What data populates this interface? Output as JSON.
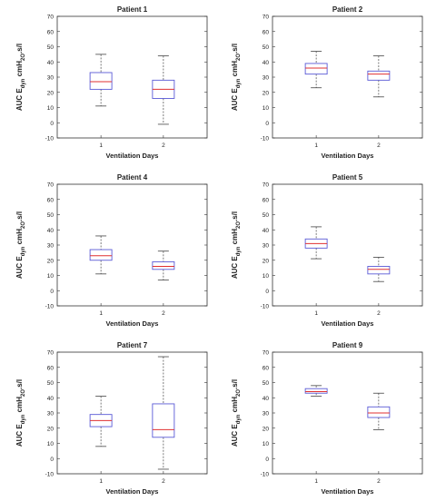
{
  "chart_data": [
    {
      "type": "box",
      "title": "Patient 1",
      "xlabel": "Ventilation Days",
      "ylabel": "AUC E_dyn cmH_2O.s/l",
      "ylim": [
        -10,
        70
      ],
      "yticks": [
        -10,
        0,
        10,
        20,
        30,
        40,
        50,
        60,
        70
      ],
      "categories": [
        "1",
        "2"
      ],
      "boxes": [
        {
          "min": 11,
          "q1": 22,
          "median": 27,
          "q3": 33,
          "max": 45
        },
        {
          "min": -1,
          "q1": 16,
          "median": 22,
          "q3": 28,
          "max": 44
        }
      ]
    },
    {
      "type": "box",
      "title": "Patient 2",
      "xlabel": "Ventilation Days",
      "ylabel": "AUC E_dyn cmH_2O.s/l",
      "ylim": [
        -10,
        70
      ],
      "yticks": [
        -10,
        0,
        10,
        20,
        30,
        40,
        50,
        60,
        70
      ],
      "categories": [
        "1",
        "2"
      ],
      "boxes": [
        {
          "min": 23,
          "q1": 32,
          "median": 36,
          "q3": 39,
          "max": 47
        },
        {
          "min": 17,
          "q1": 28,
          "median": 32,
          "q3": 34,
          "max": 44
        }
      ]
    },
    {
      "type": "box",
      "title": "Patient 4",
      "xlabel": "Ventilation Days",
      "ylabel": "AUC E_dyn cmH_2O.s/l",
      "ylim": [
        -10,
        70
      ],
      "yticks": [
        -10,
        0,
        10,
        20,
        30,
        40,
        50,
        60,
        70
      ],
      "categories": [
        "1",
        "2"
      ],
      "boxes": [
        {
          "min": 11,
          "q1": 20,
          "median": 23,
          "q3": 27,
          "max": 36
        },
        {
          "min": 7,
          "q1": 14,
          "median": 16,
          "q3": 19,
          "max": 26
        }
      ]
    },
    {
      "type": "box",
      "title": "Patient 5",
      "xlabel": "Ventilation Days",
      "ylabel": "AUC E_dyn cmH_2O.s/l",
      "ylim": [
        -10,
        70
      ],
      "yticks": [
        -10,
        0,
        10,
        20,
        30,
        40,
        50,
        60,
        70
      ],
      "categories": [
        "1",
        "2"
      ],
      "boxes": [
        {
          "min": 21,
          "q1": 28,
          "median": 31,
          "q3": 34,
          "max": 42
        },
        {
          "min": 6,
          "q1": 11,
          "median": 14,
          "q3": 16,
          "max": 22
        }
      ]
    },
    {
      "type": "box",
      "title": "Patient 7",
      "xlabel": "Ventilation Days",
      "ylabel": "AUC E_dyn cmH_2O.s/l",
      "ylim": [
        -10,
        70
      ],
      "yticks": [
        -10,
        0,
        10,
        20,
        30,
        40,
        50,
        60,
        70
      ],
      "categories": [
        "1",
        "2"
      ],
      "boxes": [
        {
          "min": 8,
          "q1": 21,
          "median": 25,
          "q3": 29,
          "max": 41
        },
        {
          "min": -7,
          "q1": 14,
          "median": 19,
          "q3": 36,
          "max": 67
        }
      ]
    },
    {
      "type": "box",
      "title": "Patient 9",
      "xlabel": "Ventilation Days",
      "ylabel": "AUC E_dyn cmH_2O.s/l",
      "ylim": [
        -10,
        70
      ],
      "yticks": [
        -10,
        0,
        10,
        20,
        30,
        40,
        50,
        60,
        70
      ],
      "categories": [
        "1",
        "2"
      ],
      "boxes": [
        {
          "min": 41,
          "q1": 43,
          "median": 44,
          "q3": 46,
          "max": 48
        },
        {
          "min": 19,
          "q1": 27,
          "median": 30,
          "q3": 34,
          "max": 43
        }
      ]
    }
  ],
  "style": {
    "box_color": "#5a5ad6",
    "median_color": "#e03030",
    "axis_color": "#333333",
    "whisker_color": "#444444"
  }
}
